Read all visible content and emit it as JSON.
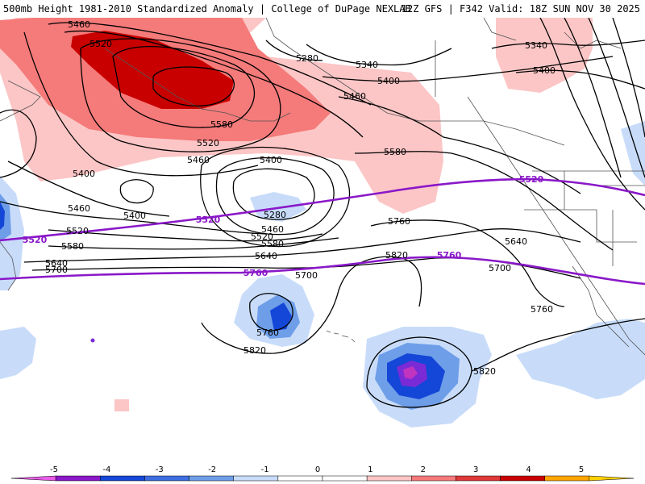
{
  "header": {
    "title_left": "500mb Height 1981-2010 Standardized Anomaly | College of DuPage NEXLAB",
    "title_right": "12Z GFS | F342 Valid: 18Z SUN NOV 30 2025"
  },
  "contours": {
    "black": [
      {
        "label": "5460",
        "value": 5460
      },
      {
        "label": "5520",
        "value": 5520
      },
      {
        "label": "5580",
        "value": 5580
      },
      {
        "label": "5280",
        "value": 5280
      },
      {
        "label": "5340",
        "value": 5340
      },
      {
        "label": "5400",
        "value": 5400
      },
      {
        "label": "5640",
        "value": 5640
      },
      {
        "label": "5700",
        "value": 5700
      },
      {
        "label": "5760",
        "value": 5760
      },
      {
        "label": "5820",
        "value": 5820
      }
    ],
    "purple": [
      {
        "label": "5520",
        "value": 5520
      },
      {
        "label": "5760",
        "value": 5760
      }
    ]
  },
  "colors": {
    "anom_pos_1": "#fcc6c6",
    "anom_pos_2": "#f57a7a",
    "anom_pos_3": "#c80000",
    "anom_neg_1": "#c8dcfa",
    "anom_neg_2": "#6e9ee8",
    "anom_neg_3": "#1446d8",
    "anom_neg_4": "#7a2bd6",
    "contour_black": "#000000",
    "contour_purple": "#8a18c8",
    "coast": "#555555"
  },
  "colorbar": {
    "ticks": [
      "-5",
      "-4",
      "-3",
      "-2",
      "-1",
      "0",
      "1",
      "2",
      "3",
      "4",
      "5"
    ],
    "colors": [
      "#e85ce8",
      "#8a18c8",
      "#1446d8",
      "#3c6ee0",
      "#6e9ee8",
      "#c8dcfa",
      "#ffffff",
      "#ffffff",
      "#fcc6c6",
      "#f57a7a",
      "#e03838",
      "#c80000",
      "#ffa500",
      "#ffd000"
    ]
  }
}
